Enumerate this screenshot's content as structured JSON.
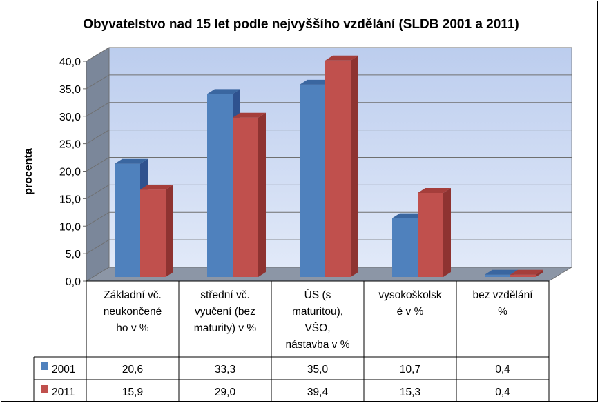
{
  "chart_data": {
    "type": "bar",
    "style": "3d-clustered-column-with-data-table",
    "title": "Obyvatelstvo nad 15 let podle nejvyššího vzdělání (SLDB 2001 a 2011)",
    "xlabel": "",
    "ylabel": "procenta",
    "ylim": [
      0,
      40
    ],
    "ytick_step": 5,
    "ytick_labels": [
      "0,0",
      "5,0",
      "10,0",
      "15,0",
      "20,0",
      "25,0",
      "30,0",
      "35,0",
      "40,0"
    ],
    "grid": true,
    "categories": [
      [
        "Základní vč.",
        "neukončené",
        "ho v %"
      ],
      [
        "střední vč.",
        "vyučení (bez",
        "maturity) v %"
      ],
      [
        "ÚS (s",
        "maturitou),",
        "VŠO,",
        "nástavba v %"
      ],
      [
        "vysokoškolsk",
        "é v %"
      ],
      [
        "bez vzdělání",
        "%"
      ]
    ],
    "series": [
      {
        "name": "2001",
        "color": "#4F81BD",
        "side_color": "#2F528F",
        "top_color": "#3A66A0",
        "values": [
          20.6,
          33.3,
          35.0,
          10.7,
          0.4
        ],
        "labels": [
          "20,6",
          "33,3",
          "35,0",
          "10,7",
          "0,4"
        ]
      },
      {
        "name": "2011",
        "color": "#C0504D",
        "side_color": "#8E3331",
        "top_color": "#A53E3B",
        "values": [
          15.9,
          29.0,
          39.4,
          15.3,
          0.4
        ],
        "labels": [
          "15,9",
          "29,0",
          "39,4",
          "15,3",
          "0,4"
        ]
      }
    ],
    "wall_color_top": "#BCCDEE",
    "wall_color_bottom": "#E1E9F8",
    "side_wall_color": "#7B879A",
    "floor_color": "#8C96A6"
  }
}
